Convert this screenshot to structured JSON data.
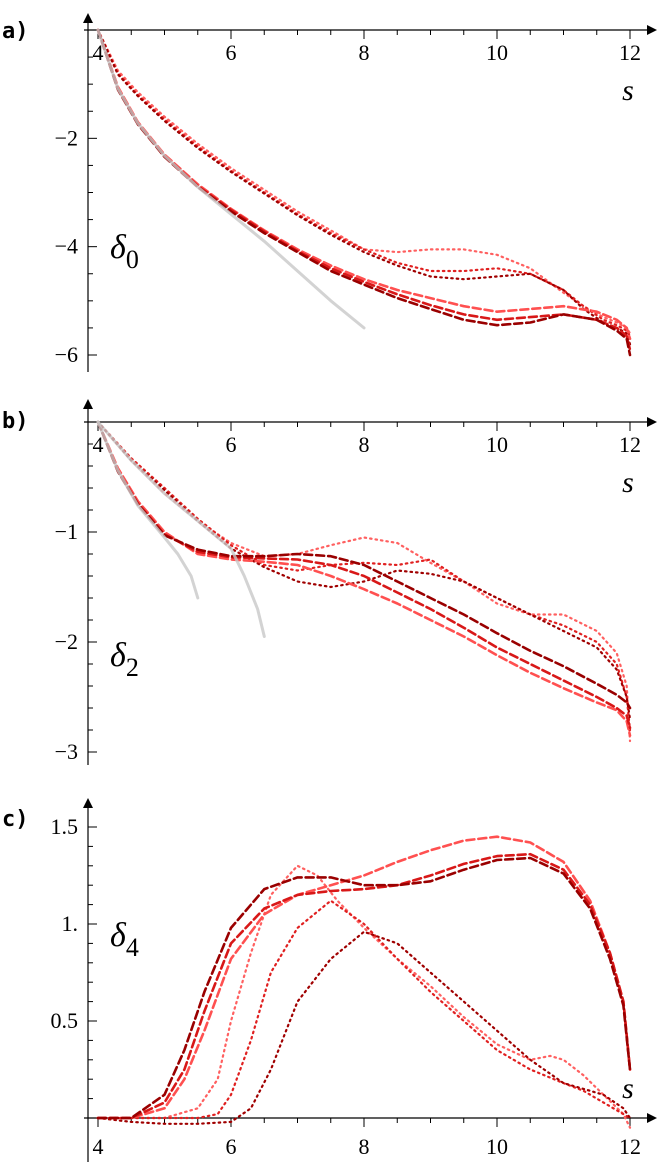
{
  "chart_data": [
    {
      "type": "line",
      "panel_label": "a)",
      "xlabel": "s",
      "ylabel": "δ0",
      "ylabel_main": "δ",
      "ylabel_sub": "0",
      "xlim": [
        3.9,
        12.3
      ],
      "ylim": [
        -6.3,
        0
      ],
      "xticks": [
        4,
        6,
        8,
        10,
        12
      ],
      "yticks": [
        -2,
        -4,
        -6
      ],
      "series": [
        {
          "style": "dotted",
          "color": "#ff6060",
          "x": [
            4,
            4.3,
            4.6,
            5,
            5.5,
            6,
            6.5,
            7,
            7.5,
            8,
            8.5,
            9,
            9.5,
            10,
            10.5,
            11,
            11.3,
            11.6,
            11.8,
            11.95,
            12
          ],
          "y": [
            0,
            -0.75,
            -1.15,
            -1.6,
            -2.1,
            -2.55,
            -2.95,
            -3.35,
            -3.7,
            -4.05,
            -4.1,
            -4.05,
            -4.05,
            -4.15,
            -4.4,
            -4.85,
            -5.1,
            -5.3,
            -5.4,
            -5.5,
            -5.6
          ]
        },
        {
          "style": "dotted",
          "color": "#e02020",
          "x": [
            4,
            4.3,
            4.6,
            5,
            5.5,
            6,
            6.5,
            7,
            7.5,
            8,
            8.5,
            9,
            9.5,
            10,
            10.5,
            11,
            11.3,
            11.6,
            11.8,
            11.95,
            12
          ],
          "y": [
            0,
            -0.8,
            -1.2,
            -1.65,
            -2.15,
            -2.6,
            -3.0,
            -3.4,
            -3.75,
            -4.05,
            -4.3,
            -4.45,
            -4.45,
            -4.4,
            -4.5,
            -4.8,
            -5.1,
            -5.35,
            -5.45,
            -5.55,
            -5.65
          ]
        },
        {
          "style": "dotted",
          "color": "#a00000",
          "x": [
            4,
            4.3,
            4.6,
            5,
            5.5,
            6,
            6.5,
            7,
            7.5,
            8,
            8.5,
            9,
            9.5,
            10,
            10.5,
            11,
            11.3,
            11.6,
            11.8,
            11.95,
            12
          ],
          "y": [
            0,
            -0.82,
            -1.22,
            -1.68,
            -2.18,
            -2.62,
            -3.02,
            -3.42,
            -3.78,
            -4.1,
            -4.35,
            -4.55,
            -4.6,
            -4.55,
            -4.5,
            -4.8,
            -5.15,
            -5.4,
            -5.5,
            -5.6,
            -5.8
          ]
        },
        {
          "style": "dashed",
          "color": "#ff5050",
          "x": [
            4,
            4.3,
            4.6,
            5,
            5.5,
            6,
            6.5,
            7,
            7.5,
            8,
            8.5,
            9,
            9.5,
            10,
            10.5,
            11,
            11.5,
            11.8,
            11.95,
            12
          ],
          "y": [
            0,
            -1.05,
            -1.7,
            -2.3,
            -2.85,
            -3.3,
            -3.7,
            -4.05,
            -4.35,
            -4.6,
            -4.8,
            -4.95,
            -5.1,
            -5.2,
            -5.15,
            -5.1,
            -5.2,
            -5.35,
            -5.5,
            -5.7
          ]
        },
        {
          "style": "dashed",
          "color": "#d81818",
          "x": [
            4,
            4.3,
            4.6,
            5,
            5.5,
            6,
            6.5,
            7,
            7.5,
            8,
            8.5,
            9,
            9.5,
            10,
            10.5,
            11,
            11.5,
            11.8,
            11.95,
            12
          ],
          "y": [
            0,
            -1.08,
            -1.72,
            -2.32,
            -2.88,
            -3.32,
            -3.72,
            -4.08,
            -4.4,
            -4.65,
            -4.88,
            -5.08,
            -5.25,
            -5.35,
            -5.3,
            -5.25,
            -5.35,
            -5.5,
            -5.65,
            -5.9
          ]
        },
        {
          "style": "dashed",
          "color": "#9a0000",
          "x": [
            4,
            4.3,
            4.6,
            5,
            5.5,
            6,
            6.5,
            7,
            7.5,
            8,
            8.5,
            9,
            9.5,
            10,
            10.5,
            11,
            11.5,
            11.8,
            11.95,
            12
          ],
          "y": [
            0,
            -1.1,
            -1.74,
            -2.34,
            -2.9,
            -3.35,
            -3.75,
            -4.1,
            -4.45,
            -4.7,
            -4.95,
            -5.15,
            -5.35,
            -5.45,
            -5.4,
            -5.25,
            -5.35,
            -5.55,
            -5.7,
            -6.0
          ]
        },
        {
          "style": "solid",
          "color": "#c8c8c8",
          "x": [
            4,
            4.3,
            4.6,
            5,
            5.5,
            6,
            6.5,
            7,
            7.5,
            8
          ],
          "y": [
            0,
            -1.08,
            -1.72,
            -2.32,
            -2.9,
            -3.4,
            -3.9,
            -4.45,
            -5.0,
            -5.5
          ]
        }
      ]
    },
    {
      "type": "line",
      "panel_label": "b)",
      "xlabel": "s",
      "ylabel": "δ2",
      "ylabel_main": "δ",
      "ylabel_sub": "2",
      "xlim": [
        3.9,
        12.3
      ],
      "ylim": [
        -3.1,
        0
      ],
      "xticks": [
        4,
        6,
        8,
        10,
        12
      ],
      "yticks": [
        -1,
        -2,
        -3
      ],
      "series": [
        {
          "style": "dotted",
          "color": "#ff6060",
          "x": [
            4,
            4.5,
            5,
            5.5,
            6,
            6.5,
            7,
            7.5,
            8,
            8.5,
            9,
            9.5,
            10,
            10.5,
            11,
            11.5,
            11.8,
            11.95,
            12
          ],
          "y": [
            0,
            -0.35,
            -0.65,
            -0.9,
            -1.1,
            -1.22,
            -1.2,
            -1.12,
            -1.05,
            -1.1,
            -1.28,
            -1.45,
            -1.65,
            -1.75,
            -1.75,
            -1.9,
            -2.1,
            -2.4,
            -2.9
          ]
        },
        {
          "style": "dotted",
          "color": "#e02020",
          "x": [
            4,
            4.5,
            5,
            5.5,
            6,
            6.5,
            7,
            7.5,
            8,
            8.5,
            9,
            9.5,
            10,
            10.5,
            11,
            11.5,
            11.8,
            11.95,
            12
          ],
          "y": [
            0,
            -0.33,
            -0.6,
            -0.88,
            -1.12,
            -1.3,
            -1.35,
            -1.3,
            -1.28,
            -1.3,
            -1.25,
            -1.45,
            -1.6,
            -1.75,
            -1.85,
            -2.0,
            -2.2,
            -2.5,
            -2.8
          ]
        },
        {
          "style": "dotted",
          "color": "#a00000",
          "x": [
            4,
            4.5,
            5,
            5.5,
            6,
            6.5,
            7,
            7.5,
            8,
            8.5,
            9,
            9.5,
            10,
            10.5,
            11,
            11.5,
            11.8,
            11.95,
            12
          ],
          "y": [
            0,
            -0.35,
            -0.62,
            -0.9,
            -1.15,
            -1.32,
            -1.45,
            -1.5,
            -1.45,
            -1.35,
            -1.38,
            -1.45,
            -1.6,
            -1.75,
            -1.9,
            -2.05,
            -2.25,
            -2.5,
            -2.7
          ]
        },
        {
          "style": "dashed",
          "color": "#ff5050",
          "x": [
            4,
            4.3,
            4.6,
            5,
            5.5,
            6,
            6.5,
            7,
            7.5,
            8,
            8.5,
            9,
            9.5,
            10,
            10.5,
            11,
            11.5,
            11.8,
            11.95,
            12
          ],
          "y": [
            0,
            -0.42,
            -0.72,
            -1.0,
            -1.2,
            -1.25,
            -1.27,
            -1.3,
            -1.4,
            -1.52,
            -1.65,
            -1.8,
            -1.95,
            -2.12,
            -2.28,
            -2.42,
            -2.55,
            -2.62,
            -2.72,
            -2.85
          ]
        },
        {
          "style": "dashed",
          "color": "#d81818",
          "x": [
            4,
            4.3,
            4.6,
            5,
            5.5,
            6,
            6.5,
            7,
            7.5,
            8,
            8.5,
            9,
            9.5,
            10,
            10.5,
            11,
            11.5,
            11.8,
            11.95,
            12
          ],
          "y": [
            0,
            -0.44,
            -0.74,
            -1.02,
            -1.18,
            -1.23,
            -1.24,
            -1.25,
            -1.3,
            -1.4,
            -1.55,
            -1.7,
            -1.87,
            -2.05,
            -2.2,
            -2.35,
            -2.5,
            -2.6,
            -2.67,
            -2.78
          ]
        },
        {
          "style": "dashed",
          "color": "#9a0000",
          "x": [
            4,
            4.3,
            4.6,
            5,
            5.5,
            6,
            6.5,
            7,
            7.5,
            8,
            8.5,
            9,
            9.5,
            10,
            10.5,
            11,
            11.5,
            11.8,
            11.95,
            12
          ],
          "y": [
            0,
            -0.45,
            -0.75,
            -1.03,
            -1.16,
            -1.22,
            -1.22,
            -1.2,
            -1.22,
            -1.3,
            -1.45,
            -1.6,
            -1.75,
            -1.92,
            -2.08,
            -2.22,
            -2.38,
            -2.48,
            -2.55,
            -2.6
          ]
        },
        {
          "style": "solid",
          "color": "#c8c8c8",
          "x": [
            4,
            4.3,
            4.6,
            5,
            5.2,
            5.4,
            5.5
          ],
          "y": [
            0,
            -0.44,
            -0.76,
            -1.05,
            -1.2,
            -1.4,
            -1.6
          ]
        },
        {
          "style": "solid",
          "color": "#c8c8c8",
          "x": [
            4,
            4.5,
            5,
            5.5,
            6,
            6.2,
            6.4,
            6.5
          ],
          "y": [
            0,
            -0.35,
            -0.65,
            -0.9,
            -1.15,
            -1.4,
            -1.7,
            -1.95
          ]
        }
      ]
    },
    {
      "type": "line",
      "panel_label": "c)",
      "xlabel": "s",
      "ylabel": "δ4",
      "ylabel_main": "δ",
      "ylabel_sub": "4",
      "xlim": [
        3.9,
        12.3
      ],
      "ylim": [
        0,
        1.55
      ],
      "xticks": [
        4,
        6,
        8,
        10,
        12
      ],
      "xtick_labels_below": true,
      "yticks": [
        0.5,
        1.0,
        1.5
      ],
      "ytick_labels": [
        "0.5",
        "1.",
        "1.5"
      ],
      "series": [
        {
          "style": "dotted",
          "color": "#ff6060",
          "x": [
            4,
            4.5,
            5,
            5.5,
            5.8,
            6,
            6.3,
            6.6,
            7,
            7.3,
            7.6,
            8,
            8.5,
            9,
            9.5,
            10,
            10.5,
            10.8,
            11,
            11.3,
            11.6,
            11.9,
            12
          ],
          "y": [
            0,
            0,
            0,
            0.05,
            0.2,
            0.5,
            0.85,
            1.15,
            1.3,
            1.25,
            1.12,
            0.98,
            0.82,
            0.68,
            0.52,
            0.38,
            0.3,
            0.32,
            0.3,
            0.22,
            0.12,
            0.02,
            -0.05
          ]
        },
        {
          "style": "dotted",
          "color": "#e02020",
          "x": [
            4,
            4.5,
            5,
            5.5,
            5.8,
            6,
            6.3,
            6.6,
            7,
            7.5,
            8,
            8.5,
            9,
            9.5,
            10,
            10.5,
            11,
            11.3,
            11.6,
            11.9,
            12
          ],
          "y": [
            0,
            0,
            0,
            0,
            0.02,
            0.12,
            0.4,
            0.75,
            0.98,
            1.12,
            1.0,
            0.82,
            0.65,
            0.5,
            0.35,
            0.25,
            0.18,
            0.14,
            0.08,
            0.02,
            0.0
          ]
        },
        {
          "style": "dotted",
          "color": "#a00000",
          "x": [
            4,
            4.5,
            5,
            5.5,
            6,
            6.3,
            6.6,
            7,
            7.5,
            8,
            8.5,
            9,
            9.5,
            10,
            10.5,
            11,
            11.3,
            11.6,
            11.9,
            12
          ],
          "y": [
            0,
            -0.02,
            -0.03,
            -0.03,
            -0.02,
            0.05,
            0.25,
            0.6,
            0.82,
            0.96,
            0.9,
            0.75,
            0.6,
            0.45,
            0.3,
            0.18,
            0.15,
            0.12,
            0.05,
            0.0
          ]
        },
        {
          "style": "dashed",
          "color": "#ff5050",
          "x": [
            4,
            4.5,
            5,
            5.3,
            5.6,
            6,
            6.5,
            7,
            7.5,
            8,
            8.5,
            9,
            9.5,
            10,
            10.5,
            11,
            11.4,
            11.7,
            11.9,
            12
          ],
          "y": [
            0,
            0,
            0.05,
            0.2,
            0.45,
            0.82,
            1.05,
            1.15,
            1.2,
            1.25,
            1.32,
            1.38,
            1.43,
            1.45,
            1.42,
            1.32,
            1.12,
            0.85,
            0.6,
            0.25
          ]
        },
        {
          "style": "dashed",
          "color": "#d81818",
          "x": [
            4,
            4.5,
            5,
            5.3,
            5.6,
            6,
            6.5,
            7,
            7.5,
            8,
            8.5,
            9,
            9.5,
            10,
            10.5,
            11,
            11.4,
            11.7,
            11.9,
            12
          ],
          "y": [
            0,
            0,
            0.08,
            0.25,
            0.55,
            0.9,
            1.08,
            1.15,
            1.17,
            1.18,
            1.2,
            1.25,
            1.31,
            1.35,
            1.36,
            1.28,
            1.1,
            0.85,
            0.6,
            0.25
          ]
        },
        {
          "style": "dashed",
          "color": "#9a0000",
          "x": [
            4,
            4.5,
            5,
            5.3,
            5.6,
            6,
            6.5,
            7,
            7.5,
            8,
            8.5,
            9,
            9.5,
            10,
            10.5,
            11,
            11.4,
            11.7,
            11.9,
            12
          ],
          "y": [
            0,
            0,
            0.12,
            0.35,
            0.65,
            0.98,
            1.18,
            1.24,
            1.24,
            1.2,
            1.2,
            1.22,
            1.28,
            1.33,
            1.34,
            1.26,
            1.08,
            0.82,
            0.58,
            0.25
          ]
        }
      ]
    }
  ]
}
